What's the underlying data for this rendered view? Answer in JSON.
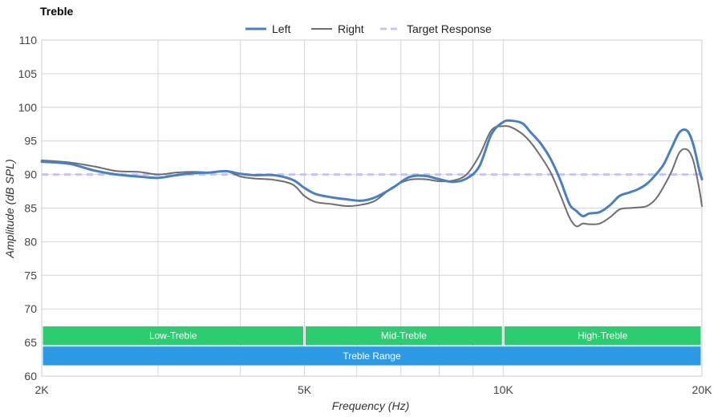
{
  "chart_data": {
    "type": "line",
    "title": "Treble",
    "xlabel": "Frequency (Hz)",
    "ylabel": "Amplitude (dB SPL)",
    "xscale": "log",
    "xlim": [
      2000,
      20000
    ],
    "ylim": [
      60,
      110
    ],
    "x_ticks": [
      {
        "value": 2000,
        "label": "2K"
      },
      {
        "value": 5000,
        "label": "5K"
      },
      {
        "value": 10000,
        "label": "10K"
      },
      {
        "value": 20000,
        "label": "20K"
      }
    ],
    "y_ticks": [
      60,
      65,
      70,
      75,
      80,
      85,
      90,
      95,
      100,
      105,
      110
    ],
    "x_gridlines": [
      2000,
      3000,
      4000,
      5000,
      6000,
      7000,
      8000,
      9000,
      10000,
      20000
    ],
    "grid": true,
    "legend_position": "top-center",
    "series": [
      {
        "name": "Left",
        "color": "#4a7fc1",
        "style": "solid",
        "points": [
          [
            2000,
            91.9
          ],
          [
            2200,
            91.6
          ],
          [
            2400,
            90.6
          ],
          [
            2600,
            90.0
          ],
          [
            2800,
            89.7
          ],
          [
            3000,
            89.5
          ],
          [
            3200,
            89.9
          ],
          [
            3400,
            90.2
          ],
          [
            3600,
            90.3
          ],
          [
            3800,
            90.5
          ],
          [
            4000,
            90.1
          ],
          [
            4200,
            89.9
          ],
          [
            4500,
            89.9
          ],
          [
            4800,
            89.2
          ],
          [
            5000,
            88.0
          ],
          [
            5200,
            87.1
          ],
          [
            5500,
            86.6
          ],
          [
            5800,
            86.3
          ],
          [
            6100,
            86.1
          ],
          [
            6400,
            86.6
          ],
          [
            6800,
            88.0
          ],
          [
            7200,
            89.6
          ],
          [
            7600,
            89.8
          ],
          [
            8000,
            89.3
          ],
          [
            8400,
            88.9
          ],
          [
            8800,
            89.4
          ],
          [
            9200,
            91.2
          ],
          [
            9600,
            96.0
          ],
          [
            10000,
            97.8
          ],
          [
            10300,
            98.0
          ],
          [
            10700,
            97.6
          ],
          [
            11000,
            96.3
          ],
          [
            11400,
            94.6
          ],
          [
            11800,
            92.3
          ],
          [
            12200,
            89.2
          ],
          [
            12600,
            85.6
          ],
          [
            12900,
            84.6
          ],
          [
            13200,
            83.8
          ],
          [
            13500,
            84.2
          ],
          [
            14000,
            84.4
          ],
          [
            14500,
            85.4
          ],
          [
            15000,
            86.8
          ],
          [
            15500,
            87.3
          ],
          [
            16000,
            87.8
          ],
          [
            16500,
            88.6
          ],
          [
            17000,
            89.9
          ],
          [
            17500,
            91.5
          ],
          [
            18000,
            94.0
          ],
          [
            18500,
            96.3
          ],
          [
            19000,
            96.5
          ],
          [
            19400,
            94.5
          ],
          [
            19800,
            90.8
          ],
          [
            20000,
            89.3
          ]
        ]
      },
      {
        "name": "Right",
        "color": "#6e6e6e",
        "style": "solid",
        "points": [
          [
            2000,
            92.1
          ],
          [
            2200,
            91.8
          ],
          [
            2400,
            91.2
          ],
          [
            2600,
            90.5
          ],
          [
            2800,
            90.4
          ],
          [
            3000,
            90.0
          ],
          [
            3200,
            90.3
          ],
          [
            3400,
            90.4
          ],
          [
            3600,
            90.3
          ],
          [
            3800,
            90.5
          ],
          [
            4000,
            89.7
          ],
          [
            4200,
            89.4
          ],
          [
            4500,
            89.2
          ],
          [
            4800,
            88.5
          ],
          [
            5000,
            86.8
          ],
          [
            5200,
            85.9
          ],
          [
            5500,
            85.6
          ],
          [
            5800,
            85.3
          ],
          [
            6100,
            85.5
          ],
          [
            6400,
            86.1
          ],
          [
            6800,
            88.1
          ],
          [
            7200,
            89.2
          ],
          [
            7600,
            89.3
          ],
          [
            8000,
            89.0
          ],
          [
            8400,
            89.1
          ],
          [
            8800,
            90.0
          ],
          [
            9200,
            92.8
          ],
          [
            9600,
            96.6
          ],
          [
            10000,
            97.2
          ],
          [
            10300,
            97.0
          ],
          [
            10700,
            96.0
          ],
          [
            11000,
            94.8
          ],
          [
            11400,
            92.7
          ],
          [
            11800,
            90.3
          ],
          [
            12200,
            87.0
          ],
          [
            12600,
            83.6
          ],
          [
            12900,
            82.3
          ],
          [
            13200,
            82.7
          ],
          [
            13500,
            82.6
          ],
          [
            14000,
            82.7
          ],
          [
            14500,
            83.6
          ],
          [
            15000,
            84.8
          ],
          [
            15500,
            85.0
          ],
          [
            16000,
            85.1
          ],
          [
            16500,
            85.3
          ],
          [
            17000,
            86.3
          ],
          [
            17500,
            88.2
          ],
          [
            18000,
            90.5
          ],
          [
            18500,
            93.3
          ],
          [
            19000,
            93.7
          ],
          [
            19400,
            92.1
          ],
          [
            19800,
            88.0
          ],
          [
            20000,
            85.3
          ]
        ]
      },
      {
        "name": "Target Response",
        "color": "#c4c4f5",
        "style": "dashed",
        "points": [
          [
            2000,
            90
          ],
          [
            20000,
            90
          ]
        ]
      }
    ],
    "bands": [
      {
        "label": "Low-Treble",
        "x0": 2000,
        "x1": 5000,
        "y0": 67.4,
        "y1": 64.6,
        "color": "#2ecc71"
      },
      {
        "label": "Mid-Treble",
        "x0": 5000,
        "x1": 10000,
        "y0": 67.4,
        "y1": 64.6,
        "color": "#2ecc71"
      },
      {
        "label": "High-Treble",
        "x0": 10000,
        "x1": 20000,
        "y0": 67.4,
        "y1": 64.6,
        "color": "#2ecc71"
      },
      {
        "label": "Treble Range",
        "x0": 2000,
        "x1": 20000,
        "y0": 64.4,
        "y1": 61.6,
        "color": "#2e9ae6"
      }
    ]
  }
}
